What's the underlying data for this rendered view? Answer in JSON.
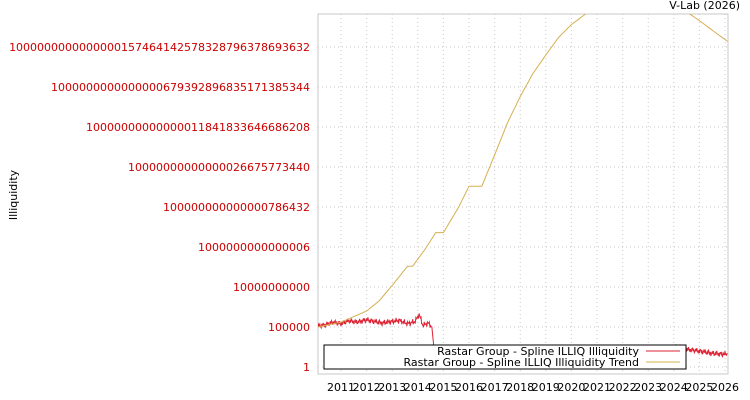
{
  "credit": "V-Lab (2026)",
  "colors": {
    "series_red": "#dd2233",
    "series_trend": "#d4b050",
    "tick_label": "#cc0000",
    "grid": "#c8c8c8",
    "frame": "#c8c8c8"
  },
  "chart_data": {
    "type": "line",
    "title": "",
    "xlabel": "",
    "ylabel": "Illiquidity",
    "yscale": "log",
    "ylim": [
      1,
      1e+44
    ],
    "xlim": [
      2010.1,
      2026.1
    ],
    "grid": true,
    "legend_position": "lower center (inside plot)",
    "y_ticks": [
      {
        "value": 1,
        "label": "1"
      },
      {
        "value": 100000,
        "label": "100000"
      },
      {
        "value": 10000000000,
        "label": "10000000000"
      },
      {
        "value": 1000000000000000.0,
        "label": "1000000000000006"
      },
      {
        "value": 1e+20,
        "label": "100000000000000786432"
      },
      {
        "value": 1e+25,
        "label": "10000000000000026675773440"
      },
      {
        "value": 1e+30,
        "label": "1000000000000001184183364668620 8"
      },
      {
        "value": 1e+35,
        "label": "100000000000000067939289683517138534 4"
      },
      {
        "value": 1e+40,
        "label": "10000000000000001574641425783287963786936 32"
      }
    ],
    "y_tick_labels_display": [
      "1",
      "100000",
      "10000000000",
      "1000000000000006",
      "100000000000000786432",
      "10000000000000026675773440",
      "1000000000000001184183364668620 8",
      "100000000000000067939289683517138534 4",
      "10000000000000001574641425783287963786936 32"
    ],
    "x_ticks": [
      "2011",
      "2012",
      "2013",
      "2014",
      "2015",
      "2016",
      "2017",
      "2018",
      "2019",
      "2020",
      "2021",
      "2022",
      "2023",
      "2024",
      "2025",
      "2026"
    ],
    "series": [
      {
        "name": "Rastar Group - Spline ILLIQ Illiquidity",
        "color": "#dd2233",
        "log10_points": [
          [
            2010.1,
            5.1
          ],
          [
            2010.4,
            5.3
          ],
          [
            2010.7,
            5.6
          ],
          [
            2011.0,
            5.4
          ],
          [
            2011.3,
            5.8
          ],
          [
            2011.6,
            5.6
          ],
          [
            2012.0,
            5.9
          ],
          [
            2012.3,
            5.7
          ],
          [
            2012.6,
            5.5
          ],
          [
            2013.0,
            5.7
          ],
          [
            2013.3,
            5.8
          ],
          [
            2013.6,
            5.4
          ],
          [
            2013.9,
            5.7
          ],
          [
            2014.05,
            6.6
          ],
          [
            2014.2,
            5.2
          ],
          [
            2014.4,
            5.5
          ],
          [
            2014.55,
            5.0
          ],
          [
            2014.7,
            0.0
          ],
          [
            2015.2,
            0.2
          ],
          [
            2016.0,
            0.3
          ],
          [
            2017.5,
            0.5
          ],
          [
            2018.0,
            0.6
          ],
          [
            2018.5,
            0.7
          ],
          [
            2019.2,
            0.8
          ],
          [
            2020.0,
            0.7
          ],
          [
            2021.0,
            0.6
          ],
          [
            2022.0,
            0.5
          ],
          [
            2023.0,
            0.8
          ],
          [
            2024.0,
            2.6
          ],
          [
            2024.5,
            2.2
          ],
          [
            2025.0,
            2.0
          ],
          [
            2025.5,
            1.7
          ],
          [
            2026.1,
            1.6
          ]
        ]
      },
      {
        "name": "Rastar Group - Spline ILLIQ Illiquidity Trend",
        "color": "#d4b050",
        "log10_points": [
          [
            2010.1,
            5.0
          ],
          [
            2011.0,
            5.6
          ],
          [
            2012.0,
            7.0
          ],
          [
            2012.5,
            8.3
          ],
          [
            2013.0,
            10.2
          ],
          [
            2013.6,
            12.6
          ],
          [
            2013.8,
            12.6
          ],
          [
            2014.3,
            14.8
          ],
          [
            2014.7,
            16.8
          ],
          [
            2015.0,
            16.8
          ],
          [
            2015.6,
            20.0
          ],
          [
            2016.0,
            22.6
          ],
          [
            2016.5,
            22.6
          ],
          [
            2017.0,
            26.5
          ],
          [
            2017.5,
            30.5
          ],
          [
            2018.0,
            33.8
          ],
          [
            2018.5,
            36.7
          ],
          [
            2019.0,
            39.0
          ],
          [
            2019.5,
            41.2
          ],
          [
            2020.0,
            42.8
          ],
          [
            2020.5,
            44.0
          ],
          [
            2021.0,
            45.2
          ],
          [
            2021.5,
            45.9
          ],
          [
            2022.0,
            46.3
          ],
          [
            2022.6,
            46.5
          ],
          [
            2023.0,
            46.4
          ],
          [
            2023.5,
            46.0
          ],
          [
            2024.0,
            45.3
          ],
          [
            2024.5,
            44.4
          ],
          [
            2025.0,
            43.3
          ],
          [
            2025.5,
            42.1
          ],
          [
            2026.1,
            40.7
          ]
        ]
      }
    ]
  },
  "legend": {
    "items": [
      {
        "label": "Rastar Group - Spline ILLIQ Illiquidity",
        "color": "#dd2233"
      },
      {
        "label": "Rastar Group - Spline ILLIQ Illiquidity Trend",
        "color": "#d4b050"
      }
    ]
  }
}
